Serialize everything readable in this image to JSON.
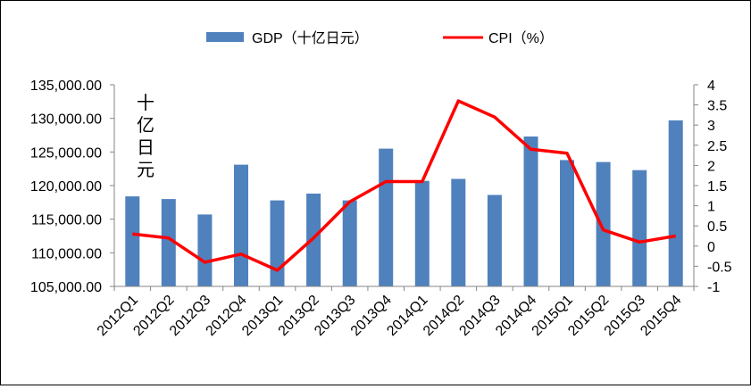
{
  "chart_data": {
    "type": "bar",
    "categories": [
      "2012Q1",
      "2012Q2",
      "2012Q3",
      "2012Q4",
      "2013Q1",
      "2013Q2",
      "2013Q3",
      "2013Q4",
      "2014Q1",
      "2014Q2",
      "2014Q3",
      "2014Q4",
      "2015Q1",
      "2015Q2",
      "2015Q3",
      "2015Q4"
    ],
    "series": [
      {
        "name": "GDP（十亿日元）",
        "type": "bar",
        "axis": "left",
        "color": "#4F81BD",
        "values": [
          118400,
          118000,
          115700,
          123100,
          117800,
          118800,
          117800,
          125500,
          120700,
          121000,
          118600,
          127300,
          123800,
          123500,
          122300,
          129700
        ]
      },
      {
        "name": "CPI（%）",
        "type": "line",
        "axis": "right",
        "color": "#FF0000",
        "values": [
          0.3,
          0.2,
          -0.4,
          -0.2,
          -0.6,
          0.2,
          1.1,
          1.6,
          1.6,
          3.6,
          3.2,
          2.4,
          2.3,
          0.4,
          0.1,
          0.25
        ]
      }
    ],
    "y_left": {
      "range": [
        105000,
        135000
      ],
      "ticks": [
        "105,000.00",
        "110,000.00",
        "115,000.00",
        "120,000.00",
        "125,000.00",
        "130,000.00",
        "135,000.00"
      ],
      "tick_values": [
        105000,
        110000,
        115000,
        120000,
        125000,
        130000,
        135000
      ],
      "unit_label": [
        "十",
        "亿",
        "日",
        "元"
      ]
    },
    "y_right": {
      "range": [
        -1,
        4
      ],
      "ticks": [
        "-1",
        "-0.5",
        "0",
        "0.5",
        "1",
        "1.5",
        "2",
        "2.5",
        "3",
        "3.5",
        "4"
      ],
      "tick_values": [
        -1,
        -0.5,
        0,
        0.5,
        1,
        1.5,
        2,
        2.5,
        3,
        3.5,
        4
      ]
    },
    "grid": false,
    "legend_position": "top-center"
  }
}
